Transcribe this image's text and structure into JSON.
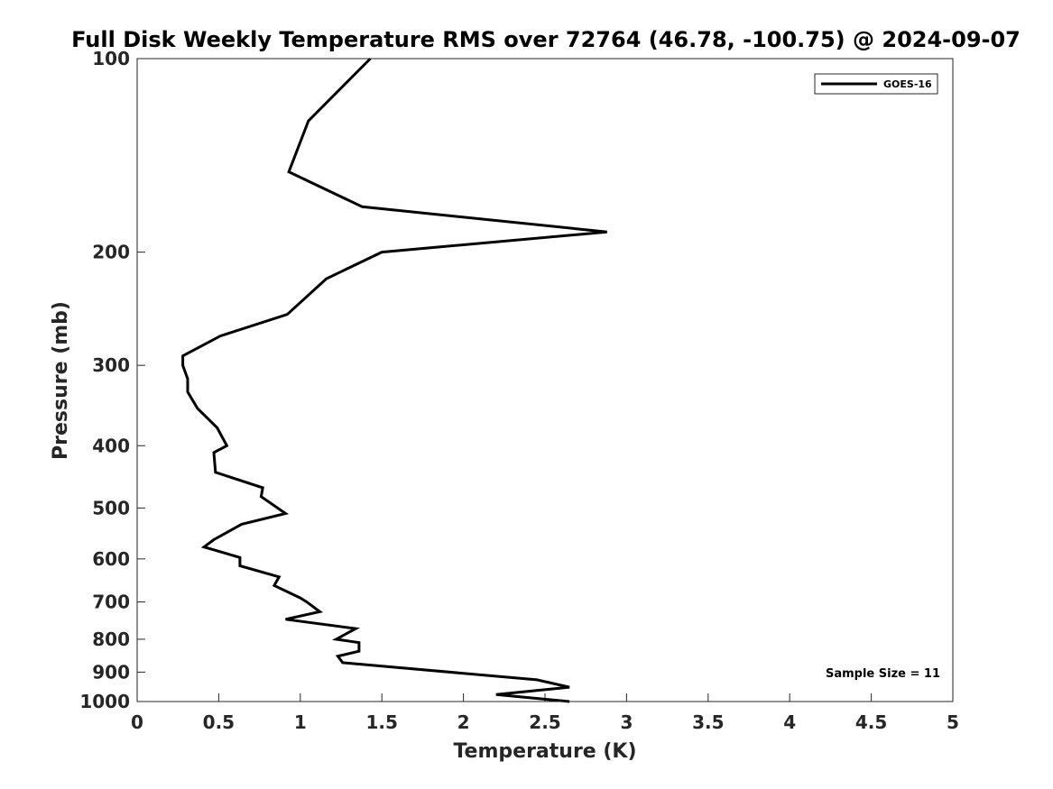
{
  "chart_data": {
    "type": "line",
    "title": "Full Disk Weekly Temperature RMS over 72764 (46.78, -100.75) @ 2024-09-07",
    "xlabel": "Temperature (K)",
    "ylabel": "Pressure (mb)",
    "xlim": [
      0,
      5
    ],
    "ylim": [
      100,
      1000
    ],
    "y_scale": "log",
    "y_reversed": true,
    "grid": false,
    "x_ticks": [
      0,
      0.5,
      1,
      1.5,
      2,
      2.5,
      3,
      3.5,
      4,
      4.5,
      5
    ],
    "x_tick_labels": [
      "0",
      "0.5",
      "1",
      "1.5",
      "2",
      "2.5",
      "3",
      "3.5",
      "4",
      "4.5",
      "5"
    ],
    "y_ticks": [
      100,
      200,
      300,
      400,
      500,
      600,
      700,
      800,
      900,
      1000
    ],
    "y_tick_labels": [
      "100",
      "200",
      "300",
      "400",
      "500",
      "600",
      "700",
      "800",
      "900",
      "1000"
    ],
    "legend": {
      "placement": "top-right",
      "entries": [
        "GOES-16"
      ]
    },
    "annotation": "Sample Size = 11",
    "series": [
      {
        "name": "GOES-16",
        "color": "#000000",
        "x": [
          1.43,
          1.05,
          0.93,
          1.38,
          2.88,
          1.5,
          1.16,
          0.92,
          0.51,
          0.28,
          0.28,
          0.31,
          0.31,
          0.37,
          0.49,
          0.55,
          0.47,
          0.48,
          0.77,
          0.76,
          0.91,
          0.64,
          0.47,
          0.41,
          0.63,
          0.63,
          0.87,
          0.84,
          1.0,
          1.04,
          1.12,
          0.91,
          1.34,
          1.22,
          1.36,
          1.36,
          1.23,
          1.26,
          2.45,
          2.65,
          2.2,
          2.65
        ],
        "y": [
          100,
          125,
          150,
          170,
          186,
          200,
          220,
          250,
          270,
          290,
          300,
          315,
          330,
          350,
          375,
          400,
          410,
          440,
          465,
          480,
          510,
          530,
          560,
          575,
          597,
          615,
          640,
          660,
          690,
          700,
          725,
          745,
          770,
          800,
          810,
          835,
          850,
          870,
          925,
          950,
          975,
          1000
        ]
      }
    ]
  }
}
